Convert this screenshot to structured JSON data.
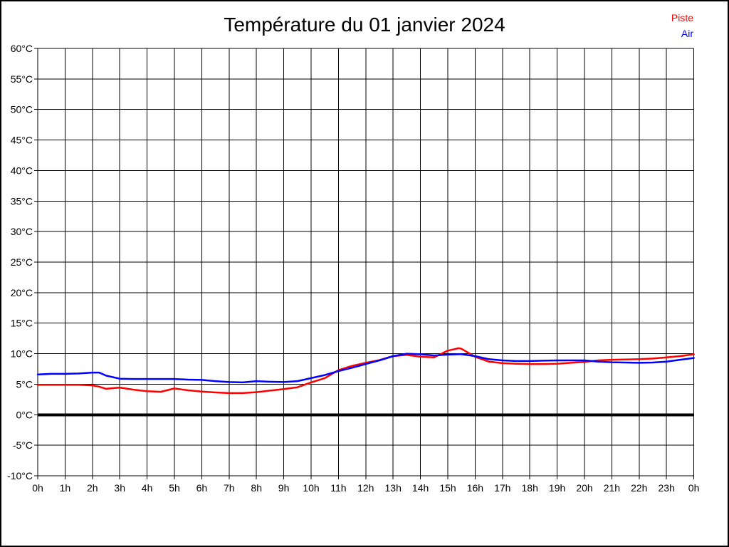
{
  "chart_data": {
    "type": "line",
    "title": "Température du 01 janvier 2024",
    "xlabel": "",
    "ylabel": "",
    "xlim": [
      0,
      24
    ],
    "ylim": [
      -10,
      60
    ],
    "ytick_step": 5,
    "xtick_step_hours": 1,
    "grid": true,
    "zero_line": {
      "value": 0,
      "color": "#000000",
      "thick": true
    },
    "legend_position": "top-right",
    "grid_color": "#000000",
    "x_tick_labels": [
      "0h",
      "1h",
      "2h",
      "3h",
      "4h",
      "5h",
      "6h",
      "7h",
      "8h",
      "9h",
      "10h",
      "11h",
      "12h",
      "13h",
      "14h",
      "15h",
      "16h",
      "17h",
      "18h",
      "19h",
      "20h",
      "21h",
      "22h",
      "23h",
      "0h"
    ],
    "y_tick_labels": [
      "60°C",
      "55°C",
      "50°C",
      "45°C",
      "40°C",
      "35°C",
      "30°C",
      "25°C",
      "20°C",
      "15°C",
      "10°C",
      "5°C",
      "0°C",
      "-5°C",
      "-10°C"
    ],
    "x": [
      0,
      0.5,
      1,
      1.5,
      2,
      2.25,
      2.5,
      3,
      3.5,
      4,
      4.5,
      5,
      5.5,
      6,
      6.5,
      7,
      7.5,
      8,
      8.5,
      9,
      9.5,
      10,
      10.5,
      11,
      11.5,
      12,
      12.5,
      13,
      13.5,
      14,
      14.5,
      15,
      15.4,
      15.5,
      16,
      16.5,
      17,
      17.5,
      18,
      18.5,
      19,
      19.5,
      20,
      20.5,
      21,
      21.5,
      22,
      22.5,
      23,
      23.5,
      24
    ],
    "series": [
      {
        "name": "Piste",
        "color": "#ff0000",
        "values": [
          4.9,
          4.9,
          4.9,
          4.9,
          4.8,
          4.6,
          4.25,
          4.45,
          4.1,
          3.85,
          3.75,
          4.3,
          4.0,
          3.8,
          3.65,
          3.55,
          3.55,
          3.7,
          3.95,
          4.2,
          4.5,
          5.3,
          6.0,
          7.3,
          8.0,
          8.5,
          8.95,
          9.6,
          9.8,
          9.5,
          9.4,
          10.5,
          10.9,
          10.8,
          9.5,
          8.7,
          8.45,
          8.35,
          8.3,
          8.3,
          8.35,
          8.5,
          8.65,
          8.9,
          9.0,
          9.05,
          9.1,
          9.2,
          9.4,
          9.6,
          9.9
        ]
      },
      {
        "name": "Air",
        "color": "#0000ff",
        "values": [
          6.6,
          6.7,
          6.7,
          6.75,
          6.9,
          6.9,
          6.4,
          5.9,
          5.85,
          5.85,
          5.85,
          5.85,
          5.75,
          5.7,
          5.5,
          5.35,
          5.3,
          5.5,
          5.4,
          5.35,
          5.5,
          6.0,
          6.5,
          7.15,
          7.7,
          8.3,
          8.9,
          9.6,
          10.0,
          9.9,
          9.7,
          9.85,
          9.9,
          9.9,
          9.6,
          9.1,
          8.9,
          8.8,
          8.8,
          8.85,
          8.9,
          8.9,
          8.9,
          8.7,
          8.6,
          8.55,
          8.5,
          8.55,
          8.7,
          9.0,
          9.3
        ]
      }
    ]
  }
}
